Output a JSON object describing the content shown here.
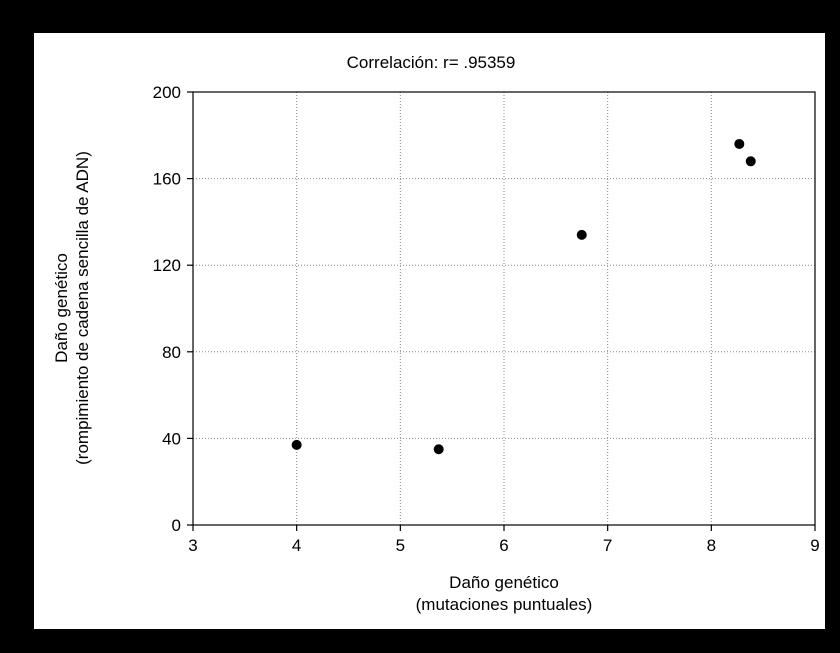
{
  "chart_data": {
    "type": "scatter",
    "title": "Correlación: r= .95359",
    "xlabel": [
      "Daño genético",
      "(mutaciones puntuales)"
    ],
    "ylabel": [
      "Daño genético",
      "(rompimiento de cadena sencilla de ADN)"
    ],
    "xlim": [
      3,
      9
    ],
    "ylim": [
      0,
      200
    ],
    "xticks": [
      3,
      4,
      5,
      6,
      7,
      8,
      9
    ],
    "yticks": [
      0,
      40,
      80,
      120,
      160,
      200
    ],
    "grid": true,
    "points": [
      {
        "x": 4.0,
        "y": 37
      },
      {
        "x": 5.37,
        "y": 35
      },
      {
        "x": 6.75,
        "y": 134
      },
      {
        "x": 8.27,
        "y": 176
      },
      {
        "x": 8.38,
        "y": 168
      }
    ],
    "marker_color": "#000000"
  }
}
